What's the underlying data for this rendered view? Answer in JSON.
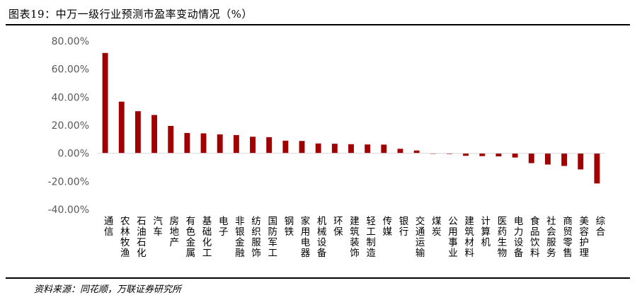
{
  "title": "图表19：中万一级行业预测市盈率变动情况（%）",
  "source": "资料来源：同花顺，万联证券研究所",
  "colors": {
    "bar": "#a00000",
    "axis_text": "#595959",
    "axis_line": "#d9d9d9"
  },
  "chart_data": {
    "type": "bar",
    "title": "",
    "xlabel": "",
    "ylabel": "",
    "ylim": [
      -40,
      80
    ],
    "yticks": [
      80,
      60,
      40,
      20,
      0,
      -20,
      -40
    ],
    "ytick_labels": [
      "80.00%",
      "60.00%",
      "40.00%",
      "20.00%",
      "0.00%",
      "-20.00%",
      "-40.00%"
    ],
    "grid": false,
    "categories": [
      "通信",
      "农林牧渔",
      "石油石化",
      "汽车",
      "房地产",
      "有色金属",
      "基础化工",
      "电子",
      "非银金融",
      "纺织服饰",
      "国防军工",
      "钢铁",
      "家用电器",
      "机械设备",
      "环保",
      "建筑装饰",
      "轻工制造",
      "传媒",
      "银行",
      "交通运输",
      "煤炭",
      "公用事业",
      "建筑材料",
      "计算机",
      "医药生物",
      "电力设备",
      "食品饮料",
      "社会服务",
      "商贸零售",
      "美容护理",
      "综合"
    ],
    "values": [
      71.5,
      36.8,
      30.0,
      27.3,
      19.5,
      14.5,
      14.2,
      13.5,
      13.0,
      11.8,
      11.5,
      9.0,
      8.8,
      7.0,
      6.8,
      6.5,
      6.3,
      6.2,
      3.2,
      2.0,
      -0.3,
      -0.5,
      -1.8,
      -2.0,
      -2.2,
      -3.0,
      -7.0,
      -8.0,
      -9.0,
      -11.5,
      -21.5
    ]
  }
}
